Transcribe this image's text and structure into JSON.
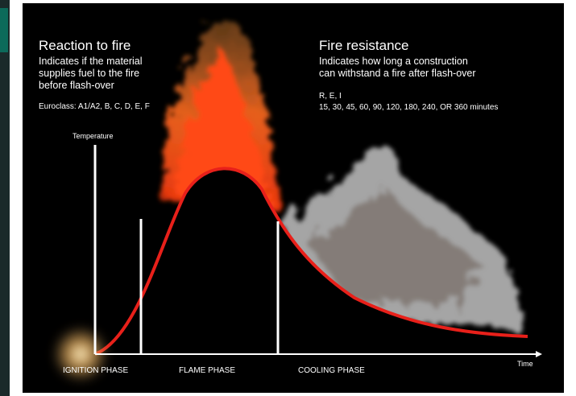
{
  "left": {
    "title": "Reaction to fire",
    "lines": [
      "Indicates if the material",
      "supplies fuel to the fire",
      "before flash-over"
    ],
    "classes": "Euroclass: A1/A2, B, C, D, E, F"
  },
  "right": {
    "title": "Fire resistance",
    "lines": [
      "Indicates how long a construction",
      "can withstand a fire after flash-over"
    ],
    "criteria": "R, E, I",
    "durations": "15, 30, 45, 60, 90, 120, 180, 240, OR 360 minutes"
  },
  "axes": {
    "y_label": "Temperature",
    "x_label": "Time"
  },
  "phases": [
    "IGNITION PHASE",
    "FLAME PHASE",
    "COOLING PHASE"
  ]
}
